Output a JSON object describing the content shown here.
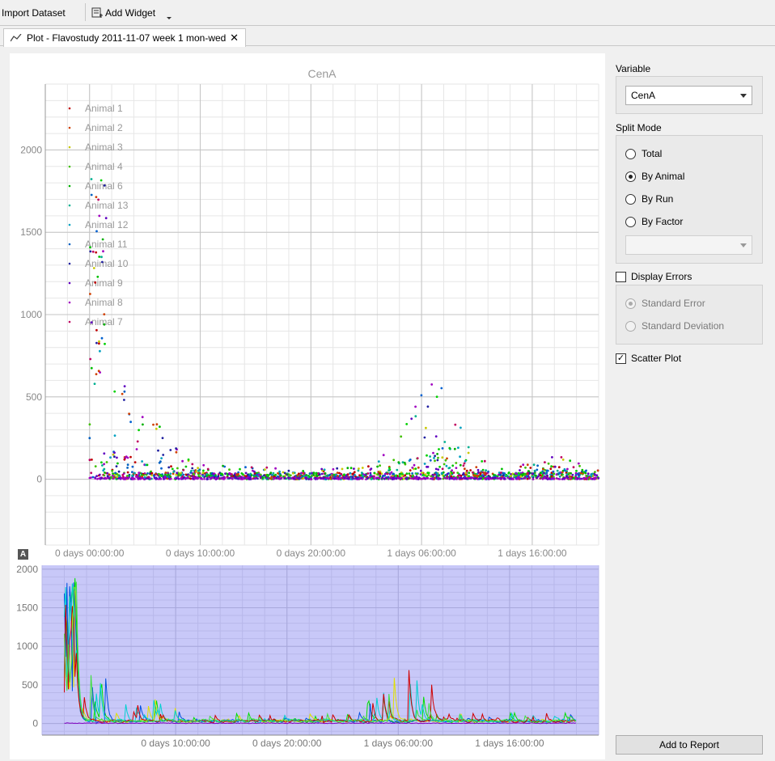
{
  "toolbar": {
    "import_label": "Import Dataset",
    "add_widget_label": "Add Widget"
  },
  "tab": {
    "label": "Plot - Flavostudy 2011-11-07 week 1 mon-wed"
  },
  "sidebar": {
    "variable_title": "Variable",
    "variable_value": "CenA",
    "split_title": "Split Mode",
    "split_options": [
      {
        "label": "Total",
        "checked": false
      },
      {
        "label": "By Animal",
        "checked": true
      },
      {
        "label": "By Run",
        "checked": false
      },
      {
        "label": "By Factor",
        "checked": false
      }
    ],
    "factor_value": "",
    "display_errors_label": "Display Errors",
    "display_errors_checked": false,
    "error_options": [
      {
        "label": "Standard Error",
        "checked": true
      },
      {
        "label": "Standard Deviation",
        "checked": false
      }
    ],
    "scatter_label": "Scatter Plot",
    "scatter_checked": true,
    "add_report_label": "Add to Report"
  },
  "chart_data": [
    {
      "type": "scatter",
      "title": "CenA",
      "xlabel": "",
      "ylabel": "",
      "ylim": [
        -400,
        2400
      ],
      "yticks": [
        0,
        500,
        1000,
        1500,
        2000
      ],
      "xtick_labels": [
        "0 days 00:00:00",
        "0 days 10:00:00",
        "0 days 20:00:00",
        "1 days 06:00:00",
        "1 days 16:00:00"
      ],
      "x_range_hours": [
        -4,
        46
      ],
      "grid": true,
      "legend_position": "top-left",
      "series": [
        {
          "name": "Animal 1",
          "color": "#c00000"
        },
        {
          "name": "Animal 2",
          "color": "#d04000"
        },
        {
          "name": "Animal 3",
          "color": "#c8c800"
        },
        {
          "name": "Animal 4",
          "color": "#40c000"
        },
        {
          "name": "Animal 6",
          "color": "#00b000"
        },
        {
          "name": "Animal 13",
          "color": "#00b090"
        },
        {
          "name": "Animal 12",
          "color": "#00a0c0"
        },
        {
          "name": "Animal 11",
          "color": "#0060c0"
        },
        {
          "name": "Animal 10",
          "color": "#2020a0"
        },
        {
          "name": "Animal 9",
          "color": "#6000c0"
        },
        {
          "name": "Animal 8",
          "color": "#a000c0"
        },
        {
          "name": "Animal 7",
          "color": "#c00060"
        }
      ]
    },
    {
      "type": "line",
      "title": "",
      "ylim": [
        -150,
        2050
      ],
      "yticks": [
        0,
        500,
        1000,
        1500,
        2000
      ],
      "xtick_labels": [
        "0 days 10:00:00",
        "0 days 20:00:00",
        "1 days 06:00:00",
        "1 days 16:00:00"
      ],
      "x_range_hours": [
        -2,
        48
      ],
      "background": "#c8c8f8",
      "series_colors": [
        "#00e000",
        "#e0e000",
        "#0050e0",
        "#00d0d0",
        "#d00000",
        "#40e040",
        "#8000c0"
      ]
    }
  ]
}
